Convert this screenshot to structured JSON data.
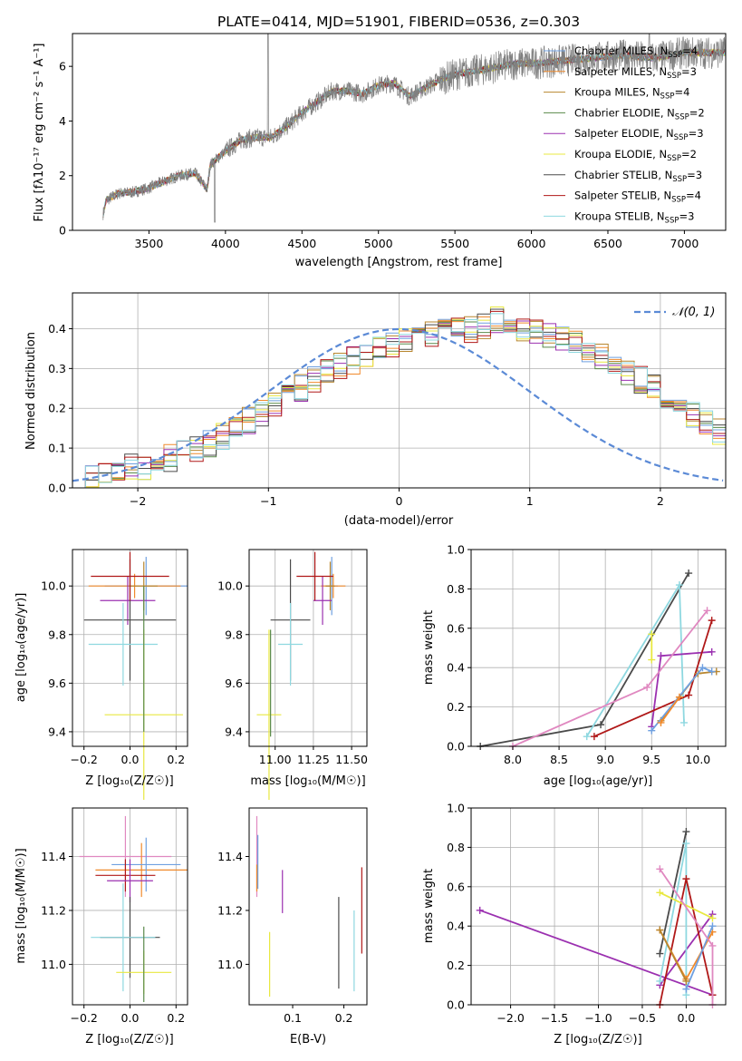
{
  "colors": {
    "chabrier_miles": "#6fa0e0",
    "salpeter_miles": "#f08a2c",
    "kroupa_miles": "#b8862e",
    "chabrier_elodie": "#5a8a4a",
    "salpeter_elodie": "#9b30b0",
    "kroupa_elodie": "#e8e840",
    "chabrier_stelib": "#4a4a4a",
    "salpeter_stelib": "#b01818",
    "kroupa_stelib": "#8ed8e0",
    "spectrum": "#808080",
    "normal": "#5b8ad6",
    "grid": "#b0b0b0"
  },
  "panels": {
    "spectrum": {
      "title": "PLATE=0414, MJD=51901, FIBERID=0536, z=0.303",
      "xlabel": "wavelength [Angstrom, rest frame]",
      "ylabel": "Flux [fλ10⁻¹⁷ erg cm⁻² s⁻¹ A⁻¹]",
      "xlim": [
        3000,
        7270
      ],
      "ylim": [
        0,
        7.2
      ],
      "xticks": [
        "3500",
        "4000",
        "4500",
        "5000",
        "5500",
        "6000",
        "6500",
        "7000"
      ],
      "yticks": [
        "0",
        "2",
        "4",
        "6"
      ],
      "legend_position": "right",
      "legend": [
        {
          "label": "Chabrier MILES, N",
          "sub": "SSP",
          "value": "=4"
        },
        {
          "label": "Salpeter MILES, N",
          "sub": "SSP",
          "value": "=3"
        },
        {
          "label": "Kroupa MILES, N",
          "sub": "SSP",
          "value": "=4"
        },
        {
          "label": "Chabrier ELODIE, N",
          "sub": "SSP",
          "value": "=2"
        },
        {
          "label": "Salpeter ELODIE, N",
          "sub": "SSP",
          "value": "=3"
        },
        {
          "label": "Kroupa ELODIE, N",
          "sub": "SSP",
          "value": "=2"
        },
        {
          "label": "Chabrier STELIB, N",
          "sub": "SSP",
          "value": "=3"
        },
        {
          "label": "Salpeter STELIB, N",
          "sub": "SSP",
          "value": "=4"
        },
        {
          "label": "Kroupa STELIB, N",
          "sub": "SSP",
          "value": "=3"
        }
      ]
    },
    "residuals": {
      "xlabel": "(data-model)/error",
      "ylabel": "Normed distribution",
      "xlim": [
        -2.5,
        2.5
      ],
      "ylim": [
        0,
        0.49
      ],
      "xticks": [
        "−2",
        "−1",
        "0",
        "1",
        "2"
      ],
      "yticks": [
        "0.0",
        "0.1",
        "0.2",
        "0.3",
        "0.4"
      ],
      "legend": "𝒩(0, 1)",
      "legend_position": "top-right",
      "grid": true
    },
    "z_age": {
      "xlabel": "Z [log₁₀(Z/Z☉)]",
      "ylabel": "age  [log₁₀(age/yr)]",
      "xticks": [
        "−0.2",
        "0.0",
        "0.2"
      ],
      "yticks": [
        "9.4",
        "9.6",
        "9.8",
        "10.0"
      ],
      "grid": true
    },
    "mass_age": {
      "xlabel": "mass [log₁₀(M/M☉)]",
      "xticks": [
        "11.00",
        "11.25",
        "11.50"
      ],
      "yticks": [
        "9.4",
        "9.6",
        "9.8",
        "10.0"
      ],
      "grid": true
    },
    "age_weight": {
      "xlabel": "age  [log₁₀(age/yr)]",
      "ylabel": "mass weight",
      "xticks": [
        "8.0",
        "8.5",
        "9.0",
        "9.5",
        "10.0"
      ],
      "yticks": [
        "0.0",
        "0.2",
        "0.4",
        "0.6",
        "0.8",
        "1.0"
      ],
      "grid": true
    },
    "z_mass": {
      "xlabel": "Z [log₁₀(Z/Z☉)]",
      "ylabel": "mass [log₁₀(M/M☉)]",
      "xticks": [
        "−0.2",
        "0.0",
        "0.2"
      ],
      "yticks": [
        "11.0",
        "11.2",
        "11.4"
      ],
      "grid": true
    },
    "ebv_mass": {
      "xlabel": "E(B-V)",
      "xticks": [
        "0.1",
        "0.2"
      ],
      "yticks": [
        "11.0",
        "11.2",
        "11.4"
      ],
      "grid": false
    },
    "z_weight": {
      "xlabel": "Z [log₁₀(Z/Z☉)]",
      "ylabel": "mass weight",
      "xticks": [
        "−2.0",
        "−1.5",
        "−1.0",
        "−0.5",
        "0.0"
      ],
      "yticks": [
        "0.0",
        "0.2",
        "0.4",
        "0.6",
        "0.8",
        "1.0"
      ],
      "grid": true
    }
  },
  "chart_data": [
    {
      "type": "line",
      "panel": "spectrum",
      "note_series": "observed spectrum and 9 model fits (all closely overlapping)",
      "x_range": [
        3200,
        7270
      ],
      "anchors": [
        [
          3200,
          0.6
        ],
        [
          3220,
          1.1
        ],
        [
          3300,
          1.35
        ],
        [
          3400,
          1.4
        ],
        [
          3500,
          1.55
        ],
        [
          3600,
          1.8
        ],
        [
          3700,
          2.0
        ],
        [
          3800,
          2.1
        ],
        [
          3880,
          1.5
        ],
        [
          3900,
          2.4
        ],
        [
          4000,
          2.9
        ],
        [
          4100,
          3.3
        ],
        [
          4200,
          3.4
        ],
        [
          4300,
          3.4
        ],
        [
          4400,
          3.8
        ],
        [
          4500,
          4.3
        ],
        [
          4600,
          4.7
        ],
        [
          4700,
          5.1
        ],
        [
          4800,
          5.1
        ],
        [
          4900,
          5.0
        ],
        [
          5000,
          5.3
        ],
        [
          5100,
          5.4
        ],
        [
          5200,
          4.9
        ],
        [
          5300,
          5.2
        ],
        [
          5400,
          5.5
        ],
        [
          5500,
          5.7
        ],
        [
          5600,
          5.8
        ],
        [
          5700,
          5.9
        ],
        [
          5800,
          6.0
        ],
        [
          5900,
          6.1
        ],
        [
          6000,
          6.1
        ],
        [
          6200,
          6.2
        ],
        [
          6400,
          6.3
        ],
        [
          6600,
          6.4
        ],
        [
          6800,
          6.3
        ],
        [
          7000,
          6.5
        ],
        [
          7270,
          6.5
        ]
      ]
    },
    {
      "type": "bar",
      "panel": "residuals",
      "bin_edges_from": -2.5,
      "bin_width": 0.1,
      "approx_envelope": [
        0.02,
        0.025,
        0.03,
        0.04,
        0.05,
        0.05,
        0.06,
        0.075,
        0.09,
        0.1,
        0.11,
        0.13,
        0.15,
        0.17,
        0.19,
        0.21,
        0.23,
        0.25,
        0.27,
        0.29,
        0.31,
        0.32,
        0.33,
        0.35,
        0.36,
        0.37,
        0.38,
        0.39,
        0.39,
        0.4,
        0.4,
        0.41,
        0.42,
        0.41,
        0.4,
        0.39,
        0.38,
        0.37,
        0.36,
        0.35,
        0.33,
        0.31,
        0.29,
        0.27,
        0.25,
        0.22,
        0.2,
        0.18,
        0.16,
        0.14
      ],
      "normal_curve": {
        "mu": 0,
        "sigma": 1
      }
    },
    {
      "type": "scatter",
      "panel": "z_age",
      "points": [
        {
          "series": "chabrier_miles",
          "x": 0.07,
          "y": 10.0,
          "xerr": 0.18,
          "yerr": 0.12
        },
        {
          "series": "salpeter_miles",
          "x": 0.02,
          "y": 10.0,
          "xerr": 0.2,
          "yerr": 0.05
        },
        {
          "series": "kroupa_miles",
          "x": 0.06,
          "y": 10.0,
          "xerr": 0.06,
          "yerr": 0.1
        },
        {
          "series": "salpeter_elodie",
          "x": -0.01,
          "y": 9.94,
          "xerr": 0.12,
          "yerr": 0.1
        },
        {
          "series": "chabrier_stelib",
          "x": 0.0,
          "y": 9.86,
          "xerr": 0.2,
          "yerr": 0.25
        },
        {
          "series": "salpeter_stelib",
          "x": 0.0,
          "y": 10.04,
          "xerr": 0.17,
          "yerr": 0.1
        },
        {
          "series": "kroupa_stelib",
          "x": -0.03,
          "y": 9.76,
          "xerr": 0.15,
          "yerr": 0.17
        },
        {
          "series": "kroupa_elodie",
          "x": 0.06,
          "y": 9.47,
          "xerr": 0.17,
          "yerr": 0.35
        },
        {
          "series": "chabrier_elodie",
          "x": 0.06,
          "y": 9.7,
          "xerr": 0.0,
          "yerr": 0.3
        }
      ]
    },
    {
      "type": "scatter",
      "panel": "mass_age",
      "points": [
        {
          "series": "chabrier_miles",
          "x": 11.37,
          "y": 10.0,
          "xerr": 0.04,
          "yerr": 0.12
        },
        {
          "series": "salpeter_miles",
          "x": 11.38,
          "y": 10.0,
          "xerr": 0.08,
          "yerr": 0.05
        },
        {
          "series": "kroupa_miles",
          "x": 11.36,
          "y": 10.0,
          "xerr": 0.03,
          "yerr": 0.1
        },
        {
          "series": "salpeter_elodie",
          "x": 11.31,
          "y": 9.94,
          "xerr": 0.06,
          "yerr": 0.1
        },
        {
          "series": "chabrier_stelib",
          "x": 11.1,
          "y": 9.86,
          "xerr": 0.13,
          "yerr": 0.25
        },
        {
          "series": "salpeter_stelib",
          "x": 11.26,
          "y": 10.04,
          "xerr": 0.12,
          "yerr": 0.1
        },
        {
          "series": "kroupa_stelib",
          "x": 11.1,
          "y": 9.76,
          "xerr": 0.08,
          "yerr": 0.17
        },
        {
          "series": "kroupa_elodie",
          "x": 10.96,
          "y": 9.47,
          "xerr": 0.08,
          "yerr": 0.35
        },
        {
          "series": "chabrier_elodie",
          "x": 10.97,
          "y": 9.6,
          "xerr": 0.0,
          "yerr": 0.22
        }
      ]
    },
    {
      "type": "line",
      "panel": "age_weight",
      "series": [
        {
          "series": "chabrier_stelib",
          "x": [
            7.65,
            8.95,
            9.9
          ],
          "y": [
            0.0,
            0.11,
            0.88
          ]
        },
        {
          "series": "kroupa_stelib",
          "x": [
            8.8,
            9.8,
            9.85
          ],
          "y": [
            0.05,
            0.82,
            0.12
          ]
        },
        {
          "series": "salpeter_elodie",
          "x": [
            9.5,
            9.6,
            10.15
          ],
          "y": [
            0.1,
            0.46,
            0.48
          ]
        },
        {
          "series": "salpeter_stelib",
          "x": [
            8.88,
            9.9,
            10.15
          ],
          "y": [
            0.05,
            0.26,
            0.64
          ]
        },
        {
          "series": "kroupa_miles",
          "x": [
            9.6,
            10.0,
            10.2
          ],
          "y": [
            0.13,
            0.37,
            0.38
          ]
        },
        {
          "series": "chabrier_miles",
          "x": [
            9.5,
            10.05,
            10.15
          ],
          "y": [
            0.08,
            0.4,
            0.38
          ]
        },
        {
          "series": "pink",
          "x": [
            8.0,
            9.45,
            10.1
          ],
          "y": [
            0.0,
            0.3,
            0.69
          ]
        },
        {
          "series": "kroupa_elodie",
          "x": [
            9.5,
            9.5
          ],
          "y": [
            0.44,
            0.57
          ]
        },
        {
          "series": "salpeter_miles",
          "x": [
            9.6,
            9.8
          ],
          "y": [
            0.12,
            0.25
          ]
        }
      ]
    },
    {
      "type": "scatter",
      "panel": "z_mass",
      "points": [
        {
          "series": "pink",
          "x": -0.02,
          "y": 11.4,
          "xerr": 0.2,
          "yerr": 0.15
        },
        {
          "series": "salpeter_miles",
          "x": 0.05,
          "y": 11.35,
          "xerr": 0.2,
          "yerr": 0.1
        },
        {
          "series": "chabrier_miles",
          "x": 0.07,
          "y": 11.37,
          "xerr": 0.15,
          "yerr": 0.1
        },
        {
          "series": "salpeter_stelib",
          "x": -0.02,
          "y": 11.33,
          "xerr": 0.13,
          "yerr": 0.06
        },
        {
          "series": "salpeter_elodie",
          "x": 0.0,
          "y": 11.31,
          "xerr": 0.1,
          "yerr": 0.08
        },
        {
          "series": "chabrier_stelib",
          "x": 0.0,
          "y": 11.1,
          "xerr": 0.13,
          "yerr": 0.15
        },
        {
          "series": "kroupa_stelib",
          "x": -0.03,
          "y": 11.1,
          "xerr": 0.14,
          "yerr": 0.2
        },
        {
          "series": "kroupa_elodie",
          "x": 0.06,
          "y": 10.97,
          "xerr": 0.12,
          "yerr": 0.08
        },
        {
          "series": "chabrier_elodie",
          "x": 0.06,
          "y": 11.0,
          "xerr": 0.0,
          "yerr": 0.14
        }
      ]
    },
    {
      "type": "scatter",
      "panel": "ebv_mass",
      "points": [
        {
          "series": "pink",
          "x": 0.03,
          "y": 11.4,
          "yerr": 0.15
        },
        {
          "series": "chabrier_miles",
          "x": 0.032,
          "y": 11.38,
          "yerr": 0.1
        },
        {
          "series": "salpeter_miles",
          "x": 0.03,
          "y": 11.32,
          "yerr": 0.05
        },
        {
          "series": "salpeter_elodie",
          "x": 0.08,
          "y": 11.27,
          "yerr": 0.08
        },
        {
          "series": "kroupa_elodie",
          "x": 0.055,
          "y": 11.0,
          "yerr": 0.12
        },
        {
          "series": "chabrier_stelib",
          "x": 0.19,
          "y": 11.08,
          "yerr": 0.17
        },
        {
          "series": "kroupa_stelib",
          "x": 0.22,
          "y": 11.05,
          "yerr": 0.15
        },
        {
          "series": "salpeter_stelib",
          "x": 0.235,
          "y": 11.2,
          "yerr": 0.16
        }
      ]
    },
    {
      "type": "line",
      "panel": "z_weight",
      "series": [
        {
          "series": "salpeter_elodie",
          "x": [
            -2.35,
            0.3
          ],
          "y": [
            0.48,
            0.05
          ]
        },
        {
          "series": "salpeter_elodie",
          "x": [
            -0.3,
            0.3
          ],
          "y": [
            0.1,
            0.46
          ]
        },
        {
          "series": "chabrier_stelib",
          "x": [
            -0.3,
            0.0
          ],
          "y": [
            0.26,
            0.88
          ]
        },
        {
          "series": "kroupa_stelib",
          "x": [
            -0.3,
            0.0,
            0.0
          ],
          "y": [
            0.12,
            0.82,
            0.05
          ]
        },
        {
          "series": "salpeter_stelib",
          "x": [
            -0.3,
            0.0,
            0.3
          ],
          "y": [
            0.0,
            0.64,
            0.05
          ]
        },
        {
          "series": "kroupa_elodie",
          "x": [
            -0.3,
            0.3
          ],
          "y": [
            0.57,
            0.44
          ]
        },
        {
          "series": "salpeter_miles",
          "x": [
            -0.3,
            0.0,
            0.3
          ],
          "y": [
            0.38,
            0.13,
            0.37
          ]
        },
        {
          "series": "chabrier_miles",
          "x": [
            0.0,
            0.3
          ],
          "y": [
            0.08,
            0.4
          ]
        },
        {
          "series": "pink",
          "x": [
            -0.3,
            0.3,
            0.3
          ],
          "y": [
            0.69,
            0.3,
            0.0
          ]
        },
        {
          "series": "kroupa_miles",
          "x": [
            -0.3,
            0.0
          ],
          "y": [
            0.38,
            0.12
          ]
        }
      ]
    }
  ]
}
